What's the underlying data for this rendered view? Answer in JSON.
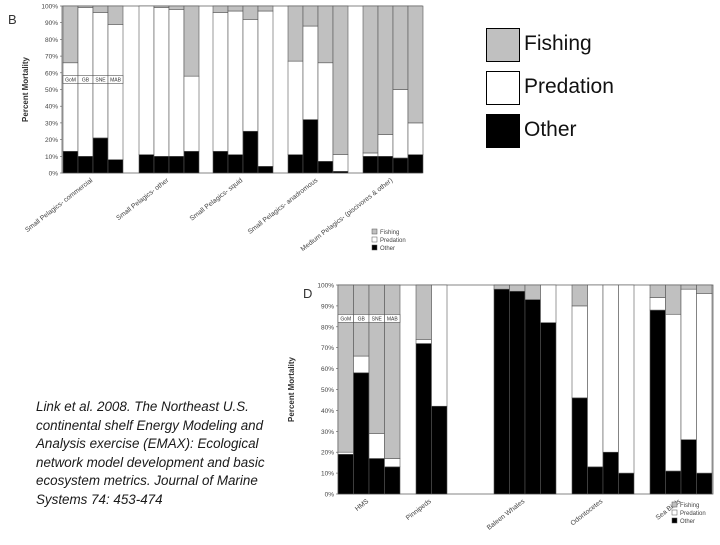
{
  "legend": {
    "items": [
      {
        "label": "Fishing",
        "color": "#c0c0c0"
      },
      {
        "label": "Predation",
        "color": "#ffffff"
      },
      {
        "label": "Other",
        "color": "#000000"
      }
    ]
  },
  "citation": {
    "text": "Link et al. 2008. The Northeast U.S. continental shelf Energy Modeling and Analysis exercise (EMAX): Ecological network model development and basic ecosystem metrics. Journal of Marine Systems 74: 453-474"
  },
  "chart_data": [
    {
      "type": "bar",
      "stacked": true,
      "panel_label": "B",
      "ylabel": "Percent Mortality",
      "ylim": [
        0,
        100
      ],
      "yticks": [
        "0%",
        "10%",
        "20%",
        "30%",
        "40%",
        "50%",
        "60%",
        "70%",
        "80%",
        "90%",
        "100%"
      ],
      "regions": [
        "GoM",
        "GB",
        "SNE",
        "MAB"
      ],
      "groups": [
        {
          "name": "Small Pelagics- commercial",
          "bars": [
            {
              "region": "GoM",
              "other": 13,
              "predation": 53,
              "fishing": 34
            },
            {
              "region": "GB",
              "other": 10,
              "predation": 89,
              "fishing": 1
            },
            {
              "region": "SNE",
              "other": 21,
              "predation": 75,
              "fishing": 4
            },
            {
              "region": "MAB",
              "other": 8,
              "predation": 81,
              "fishing": 11
            }
          ]
        },
        {
          "name": "Small Pelagics- other",
          "bars": [
            {
              "region": "GoM",
              "other": 11,
              "predation": 89,
              "fishing": 0
            },
            {
              "region": "GB",
              "other": 10,
              "predation": 89,
              "fishing": 1
            },
            {
              "region": "SNE",
              "other": 10,
              "predation": 88,
              "fishing": 2
            },
            {
              "region": "MAB",
              "other": 13,
              "predation": 45,
              "fishing": 42
            }
          ]
        },
        {
          "name": "Small Pelagics- squid",
          "bars": [
            {
              "region": "GoM",
              "other": 13,
              "predation": 83,
              "fishing": 4
            },
            {
              "region": "GB",
              "other": 11,
              "predation": 86,
              "fishing": 3
            },
            {
              "region": "SNE",
              "other": 25,
              "predation": 67,
              "fishing": 8
            },
            {
              "region": "MAB",
              "other": 4,
              "predation": 93,
              "fishing": 3
            }
          ]
        },
        {
          "name": "Small Pelagics- anadromous",
          "bars": [
            {
              "region": "GoM",
              "other": 11,
              "predation": 56,
              "fishing": 33
            },
            {
              "region": "GB",
              "other": 32,
              "predation": 56,
              "fishing": 12
            },
            {
              "region": "SNE",
              "other": 7,
              "predation": 59,
              "fishing": 34
            },
            {
              "region": "MAB",
              "other": 1,
              "predation": 10,
              "fishing": 89
            }
          ]
        },
        {
          "name": "Medium Pelagics- (piscivores & other)",
          "bars": [
            {
              "region": "GoM",
              "other": 10,
              "predation": 2,
              "fishing": 88
            },
            {
              "region": "GB",
              "other": 10,
              "predation": 13,
              "fishing": 77
            },
            {
              "region": "SNE",
              "other": 9,
              "predation": 41,
              "fishing": 50
            },
            {
              "region": "MAB",
              "other": 11,
              "predation": 19,
              "fishing": 70
            }
          ]
        }
      ],
      "legend": [
        "Fishing",
        "Predation",
        "Other"
      ]
    },
    {
      "type": "bar",
      "stacked": true,
      "panel_label": "D",
      "ylabel": "Percent Mortality",
      "ylim": [
        0,
        100
      ],
      "yticks": [
        "0%",
        "10%",
        "20%",
        "30%",
        "40%",
        "50%",
        "60%",
        "70%",
        "80%",
        "90%",
        "100%"
      ],
      "regions": [
        "GoM",
        "GB",
        "SNE",
        "MAB"
      ],
      "groups": [
        {
          "name": "HMS",
          "bars": [
            {
              "region": "GoM",
              "other": 19,
              "predation": 1,
              "fishing": 80
            },
            {
              "region": "GB",
              "other": 58,
              "predation": 8,
              "fishing": 34
            },
            {
              "region": "SNE",
              "other": 17,
              "predation": 12,
              "fishing": 71
            },
            {
              "region": "MAB",
              "other": 13,
              "predation": 4,
              "fishing": 83
            }
          ]
        },
        {
          "name": "Pinnipeds",
          "bars": [
            {
              "region": "GoM",
              "other": 72,
              "predation": 2,
              "fishing": 26
            },
            {
              "region": "GB",
              "other": 42,
              "predation": 58,
              "fishing": 0
            }
          ]
        },
        {
          "name": "Baleen Whales",
          "bars": [
            {
              "region": "GoM",
              "other": 98,
              "predation": 0,
              "fishing": 2
            },
            {
              "region": "GB",
              "other": 97,
              "predation": 0,
              "fishing": 3
            },
            {
              "region": "SNE",
              "other": 93,
              "predation": 0,
              "fishing": 7
            },
            {
              "region": "MAB",
              "other": 82,
              "predation": 18,
              "fishing": 0
            }
          ]
        },
        {
          "name": "Odontocetes",
          "bars": [
            {
              "region": "GoM",
              "other": 46,
              "predation": 44,
              "fishing": 10
            },
            {
              "region": "GB",
              "other": 13,
              "predation": 87,
              "fishing": 0
            },
            {
              "region": "SNE",
              "other": 20,
              "predation": 80,
              "fishing": 0
            },
            {
              "region": "MAB",
              "other": 10,
              "predation": 90,
              "fishing": 0
            }
          ]
        },
        {
          "name": "Sea Birds",
          "bars": [
            {
              "region": "GoM",
              "other": 88,
              "predation": 6,
              "fishing": 6
            },
            {
              "region": "GB",
              "other": 11,
              "predation": 75,
              "fishing": 14
            },
            {
              "region": "SNE",
              "other": 26,
              "predation": 72,
              "fishing": 2
            },
            {
              "region": "MAB",
              "other": 10,
              "predation": 86,
              "fishing": 4
            }
          ]
        }
      ],
      "legend": [
        "Fishing",
        "Predation",
        "Other"
      ]
    }
  ]
}
